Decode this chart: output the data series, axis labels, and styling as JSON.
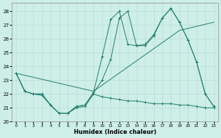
{
  "xlabel": "Humidex (Indice chaleur)",
  "bg_color": "#ceeee8",
  "grid_color": "#b0d8d2",
  "line_color": "#1a7a6a",
  "xlim": [
    -0.5,
    23.5
  ],
  "ylim": [
    20,
    28.6
  ],
  "yticks": [
    20,
    21,
    22,
    23,
    24,
    25,
    26,
    27,
    28
  ],
  "xticks": [
    0,
    1,
    2,
    3,
    4,
    5,
    6,
    7,
    8,
    9,
    10,
    11,
    12,
    13,
    14,
    15,
    16,
    17,
    18,
    19,
    20,
    21,
    22,
    23
  ],
  "series": [
    {
      "name": "line1_zigzag_high",
      "x": [
        0,
        1,
        2,
        3,
        4,
        5,
        6,
        7,
        8,
        9,
        10,
        11,
        12,
        13,
        14,
        15,
        16,
        17,
        18,
        19,
        20,
        21,
        22,
        23
      ],
      "y": [
        23.5,
        22.2,
        22.0,
        22.0,
        21.2,
        20.6,
        20.6,
        21.1,
        21.2,
        22.1,
        24.7,
        27.4,
        28.0,
        25.6,
        25.5,
        25.6,
        26.3,
        27.5,
        28.2,
        27.2,
        25.9,
        24.3,
        22.0,
        21.1
      ],
      "marker": true
    },
    {
      "name": "line2_zigzag_alt",
      "x": [
        0,
        1,
        2,
        3,
        4,
        5,
        6,
        7,
        8,
        9,
        10,
        11,
        12,
        13,
        14,
        15,
        16,
        17,
        18,
        19,
        20,
        21,
        22,
        23
      ],
      "y": [
        23.5,
        22.2,
        22.0,
        22.0,
        21.2,
        20.6,
        20.6,
        21.1,
        21.2,
        22.1,
        23.0,
        24.5,
        27.5,
        28.0,
        25.5,
        25.5,
        26.2,
        27.5,
        28.2,
        27.2,
        25.9,
        24.3,
        22.0,
        21.1
      ],
      "marker": true
    },
    {
      "name": "line3_diagonal",
      "x": [
        0,
        9,
        19,
        23
      ],
      "y": [
        23.5,
        22.2,
        26.6,
        27.2
      ],
      "marker": false
    },
    {
      "name": "line4_flat_bottom",
      "x": [
        0,
        1,
        2,
        3,
        4,
        5,
        6,
        7,
        8,
        9,
        10,
        11,
        12,
        13,
        14,
        15,
        16,
        17,
        18,
        19,
        20,
        21,
        22,
        23
      ],
      "y": [
        23.5,
        22.2,
        22.0,
        21.9,
        21.2,
        20.6,
        20.6,
        21.0,
        21.1,
        22.0,
        21.8,
        21.7,
        21.6,
        21.5,
        21.5,
        21.4,
        21.3,
        21.3,
        21.3,
        21.2,
        21.2,
        21.1,
        21.0,
        21.0
      ],
      "marker": true
    }
  ]
}
